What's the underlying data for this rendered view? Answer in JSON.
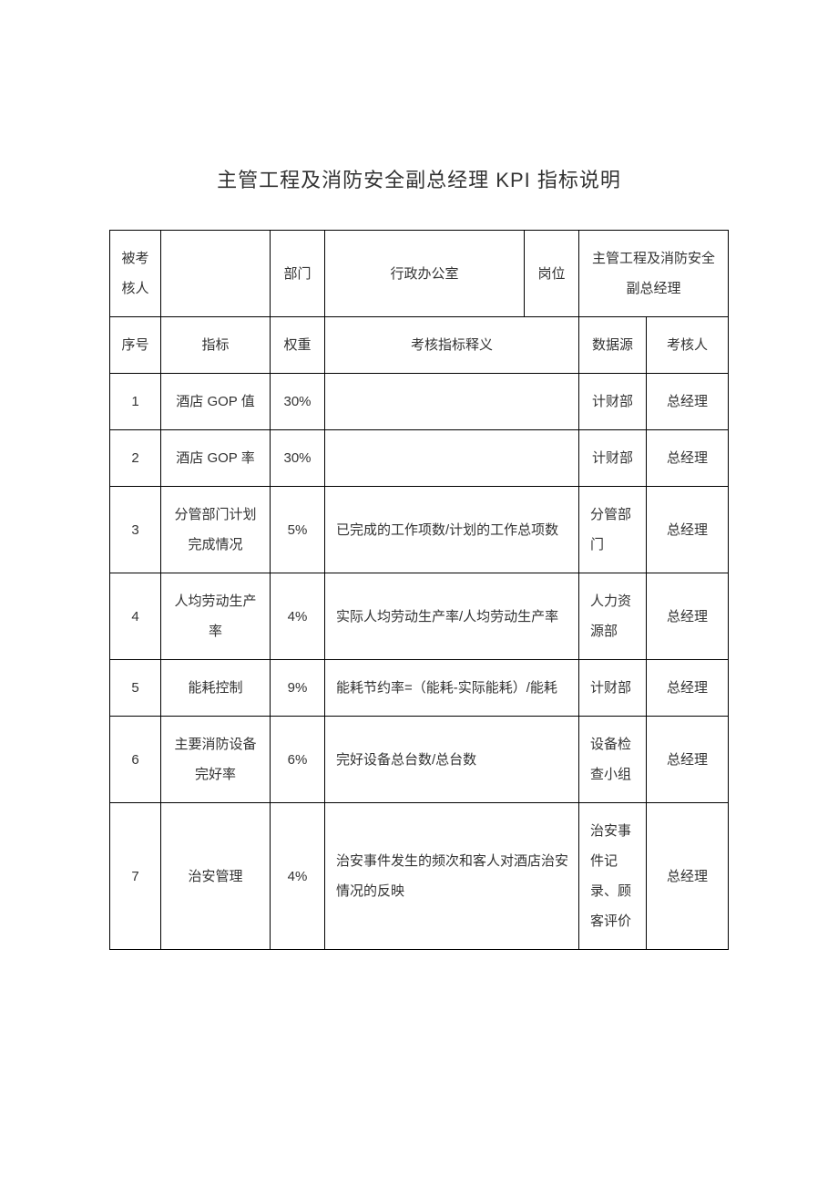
{
  "title": "主管工程及消防安全副总经理 KPI 指标说明",
  "colors": {
    "background": "#ffffff",
    "text": "#333333",
    "border": "#000000"
  },
  "typography": {
    "title_fontsize": 22,
    "cell_fontsize": 15,
    "line_height": 2.2
  },
  "header_row": {
    "assessee_label": "被考核人",
    "assessee_value": "",
    "department_label": "部门",
    "department_value": "行政办公室",
    "position_label": "岗位",
    "position_value": "主管工程及消防安全副总经理"
  },
  "columns": {
    "seq": "序号",
    "indicator": "指标",
    "weight": "权重",
    "definition": "考核指标释义",
    "source": "数据源",
    "assessor": "考核人"
  },
  "rows": [
    {
      "seq": "1",
      "indicator": "酒店 GOP 值",
      "weight": "30%",
      "definition": "",
      "source": "计财部",
      "assessor": "总经理"
    },
    {
      "seq": "2",
      "indicator": "酒店 GOP 率",
      "weight": "30%",
      "definition": "",
      "source": "计财部",
      "assessor": "总经理"
    },
    {
      "seq": "3",
      "indicator": "分管部门计划完成情况",
      "weight": "5%",
      "definition": "已完成的工作项数/计划的工作总项数",
      "source": "分管部门",
      "assessor": "总经理"
    },
    {
      "seq": "4",
      "indicator": "人均劳动生产率",
      "weight": "4%",
      "definition": "实际人均劳动生产率/人均劳动生产率",
      "source": "人力资源部",
      "assessor": "总经理"
    },
    {
      "seq": "5",
      "indicator": "能耗控制",
      "weight": "9%",
      "definition": "能耗节约率=（能耗-实际能耗）/能耗",
      "source": "计财部",
      "assessor": "总经理"
    },
    {
      "seq": "6",
      "indicator": "主要消防设备完好率",
      "weight": "6%",
      "definition": "完好设备总台数/总台数",
      "source": "设备检查小组",
      "assessor": "总经理"
    },
    {
      "seq": "7",
      "indicator": "治安管理",
      "weight": "4%",
      "definition": "治安事件发生的频次和客人对酒店治安情况的反映",
      "source": "治安事件记录、顾客评价",
      "assessor": "总经理"
    }
  ]
}
